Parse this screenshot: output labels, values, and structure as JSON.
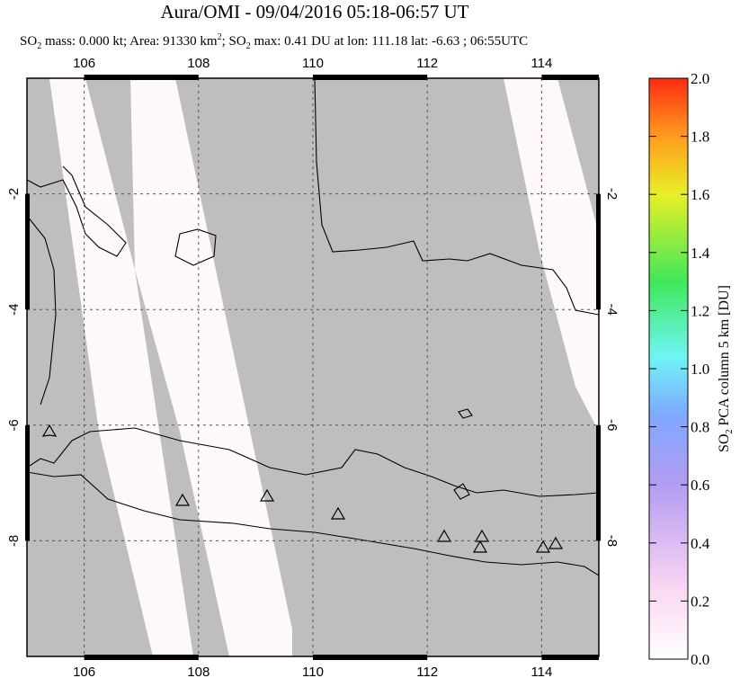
{
  "chart_data": {
    "type": "map",
    "title": "Aura/OMI - 09/04/2016 05:18-06:57 UT",
    "subtitle": [
      "SO",
      "2",
      " mass: 0.000 kt; Area: 91330 km",
      "2",
      "; SO",
      "2",
      " max: 0.41 DU at lon: 111.18 lat: -6.63 ; 06:55UTC"
    ],
    "xlim": [
      105,
      115
    ],
    "ylim": [
      -10,
      0
    ],
    "xticks": [
      106,
      108,
      110,
      112,
      114
    ],
    "yticks": [
      -2,
      -4,
      -6,
      -8
    ],
    "colorbar": {
      "label": [
        "SO",
        "2",
        " PCA column 5 km [DU]"
      ],
      "lim": [
        0,
        2
      ],
      "ticks": [
        {
          "value": 0,
          "label": "0.0"
        },
        {
          "value": 0.2,
          "label": "0.2"
        },
        {
          "value": 0.4,
          "label": "0.4"
        },
        {
          "value": 0.6,
          "label": "0.6"
        },
        {
          "value": 0.8,
          "label": "0.8"
        },
        {
          "value": 1,
          "label": "1.0"
        },
        {
          "value": 1.2,
          "label": "1.2"
        },
        {
          "value": 1.4,
          "label": "1.4"
        },
        {
          "value": 1.6,
          "label": "1.6"
        },
        {
          "value": 1.8,
          "label": "1.8"
        },
        {
          "value": 2,
          "label": "2.0"
        }
      ]
    }
  }
}
